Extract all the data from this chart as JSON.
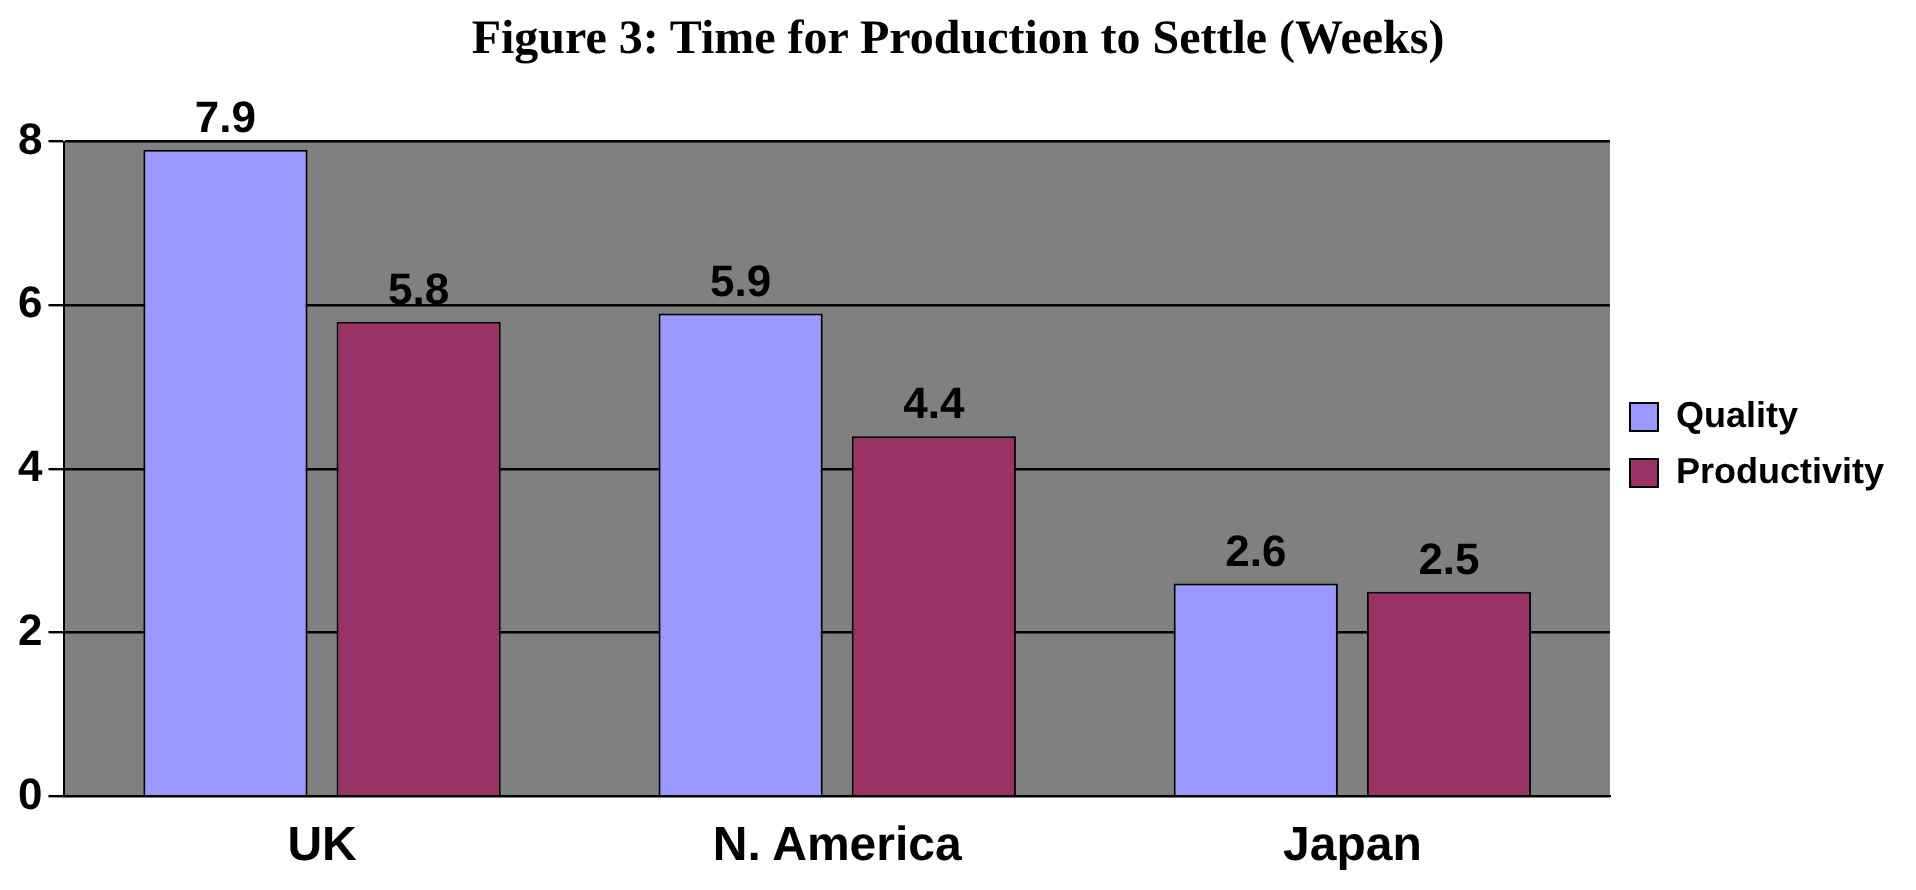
{
  "chart_data": {
    "type": "bar",
    "title": "Figure 3: Time for Production to Settle (Weeks)",
    "categories": [
      "UK",
      "N. America",
      "Japan"
    ],
    "series": [
      {
        "name": "Quality",
        "color": "#9999ff",
        "values": [
          7.9,
          5.9,
          2.6
        ]
      },
      {
        "name": "Productivity",
        "color": "#993366",
        "values": [
          5.8,
          4.4,
          2.5
        ]
      }
    ],
    "ylim": [
      0,
      8
    ],
    "yticks": [
      0,
      2,
      4,
      6,
      8
    ],
    "grid": "y",
    "legend": "right",
    "data_labels": true
  }
}
